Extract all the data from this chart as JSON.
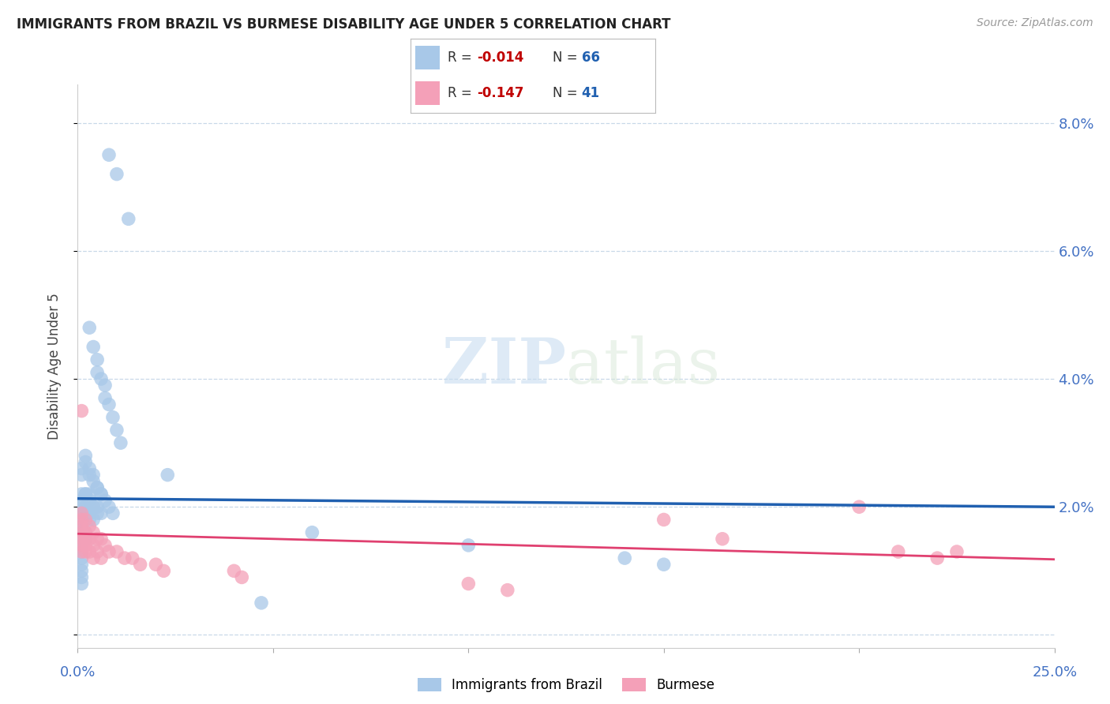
{
  "title": "IMMIGRANTS FROM BRAZIL VS BURMESE DISABILITY AGE UNDER 5 CORRELATION CHART",
  "source": "Source: ZipAtlas.com",
  "ylabel": "Disability Age Under 5",
  "legend_brazil_label": "Immigrants from Brazil",
  "legend_burmese_label": "Burmese",
  "xlim": [
    0.0,
    0.25
  ],
  "ylim": [
    -0.002,
    0.086
  ],
  "yticks": [
    0.0,
    0.02,
    0.04,
    0.06,
    0.08
  ],
  "ytick_labels": [
    "",
    "2.0%",
    "4.0%",
    "6.0%",
    "8.0%"
  ],
  "brazil_color": "#a8c8e8",
  "burmese_color": "#f4a0b8",
  "brazil_line_color": "#2060b0",
  "burmese_line_color": "#e04070",
  "brazil_r_color": "#c00000",
  "burmese_r_color": "#c00000",
  "brazil_n_color": "#2060b0",
  "burmese_n_color": "#2060b0",
  "watermark_color": "#ddeeff",
  "brazil_x": [
    0.008,
    0.01,
    0.013,
    0.003,
    0.004,
    0.005,
    0.005,
    0.006,
    0.007,
    0.007,
    0.008,
    0.009,
    0.01,
    0.011,
    0.002,
    0.002,
    0.003,
    0.003,
    0.004,
    0.004,
    0.005,
    0.005,
    0.006,
    0.006,
    0.007,
    0.008,
    0.009,
    0.001,
    0.001,
    0.002,
    0.002,
    0.003,
    0.003,
    0.004,
    0.004,
    0.005,
    0.005,
    0.006,
    0.001,
    0.001,
    0.001,
    0.002,
    0.002,
    0.003,
    0.003,
    0.004,
    0.001,
    0.001,
    0.001,
    0.001,
    0.002,
    0.002,
    0.001,
    0.001,
    0.001,
    0.023,
    0.047,
    0.06,
    0.1,
    0.14,
    0.15,
    0.001,
    0.001,
    0.001,
    0.001,
    0.001,
    0.001
  ],
  "brazil_y": [
    0.075,
    0.072,
    0.065,
    0.048,
    0.045,
    0.043,
    0.041,
    0.04,
    0.039,
    0.037,
    0.036,
    0.034,
    0.032,
    0.03,
    0.028,
    0.027,
    0.026,
    0.025,
    0.025,
    0.024,
    0.023,
    0.023,
    0.022,
    0.022,
    0.021,
    0.02,
    0.019,
    0.026,
    0.025,
    0.022,
    0.022,
    0.022,
    0.021,
    0.02,
    0.02,
    0.02,
    0.019,
    0.019,
    0.022,
    0.021,
    0.02,
    0.02,
    0.019,
    0.019,
    0.018,
    0.018,
    0.019,
    0.018,
    0.017,
    0.016,
    0.016,
    0.015,
    0.016,
    0.015,
    0.014,
    0.025,
    0.005,
    0.016,
    0.014,
    0.012,
    0.011,
    0.013,
    0.012,
    0.011,
    0.01,
    0.009,
    0.008
  ],
  "burmese_x": [
    0.001,
    0.001,
    0.001,
    0.001,
    0.001,
    0.001,
    0.001,
    0.002,
    0.002,
    0.002,
    0.002,
    0.002,
    0.003,
    0.003,
    0.003,
    0.004,
    0.004,
    0.004,
    0.005,
    0.005,
    0.006,
    0.006,
    0.007,
    0.008,
    0.01,
    0.012,
    0.014,
    0.016,
    0.02,
    0.022,
    0.04,
    0.042,
    0.1,
    0.11,
    0.15,
    0.165,
    0.2,
    0.21,
    0.22,
    0.225,
    0.001
  ],
  "burmese_y": [
    0.019,
    0.018,
    0.017,
    0.016,
    0.015,
    0.014,
    0.013,
    0.018,
    0.016,
    0.015,
    0.014,
    0.013,
    0.017,
    0.015,
    0.013,
    0.016,
    0.014,
    0.012,
    0.015,
    0.013,
    0.015,
    0.012,
    0.014,
    0.013,
    0.013,
    0.012,
    0.012,
    0.011,
    0.011,
    0.01,
    0.01,
    0.009,
    0.008,
    0.007,
    0.018,
    0.015,
    0.02,
    0.013,
    0.012,
    0.013,
    0.035
  ],
  "brazil_trend_x": [
    0.0,
    0.25
  ],
  "brazil_trend_y": [
    0.0213,
    0.02
  ],
  "burmese_trend_x": [
    0.0,
    0.25
  ],
  "burmese_trend_y": [
    0.0158,
    0.0118
  ]
}
